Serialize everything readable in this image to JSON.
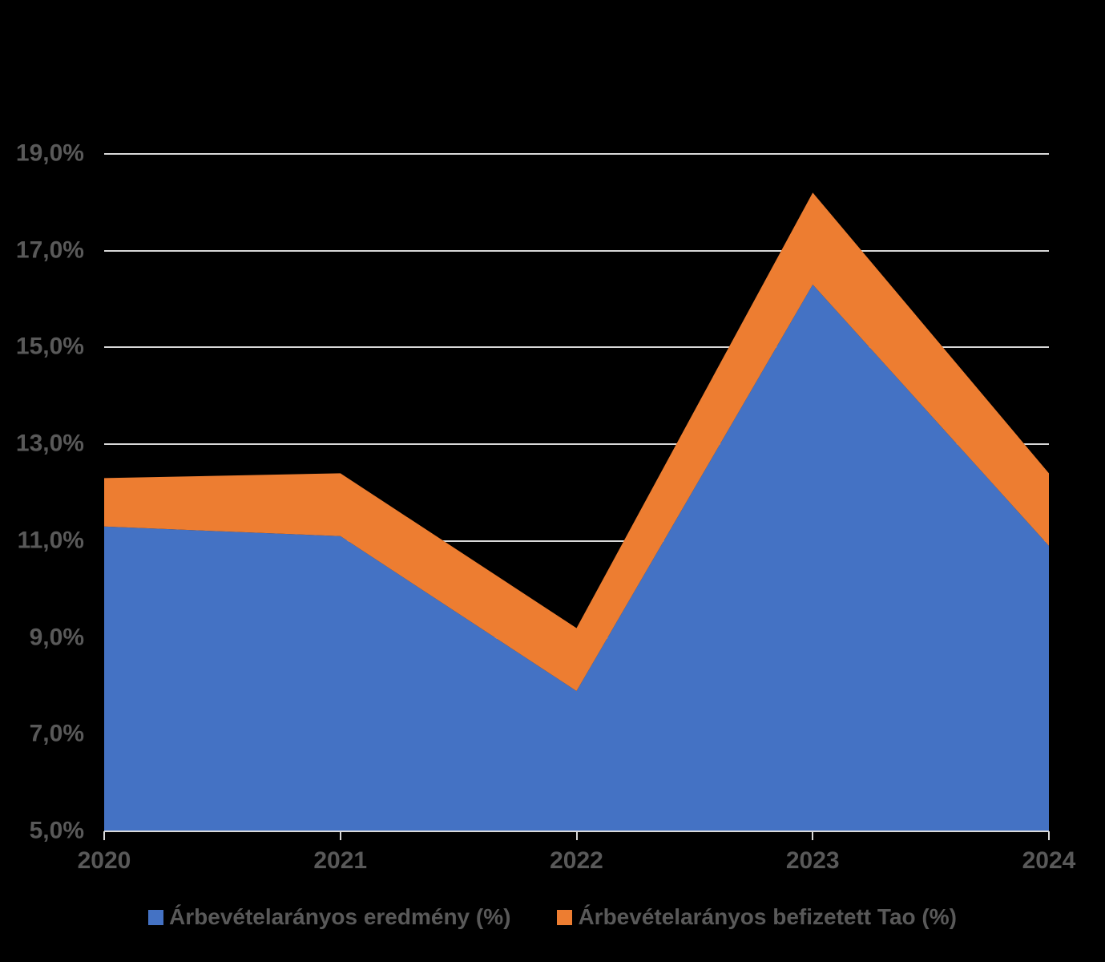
{
  "chart_data": {
    "type": "area",
    "stacked": true,
    "title": "",
    "xlabel": "",
    "ylabel": "",
    "categories": [
      "2020",
      "2021",
      "2022",
      "2023",
      "2024"
    ],
    "series": [
      {
        "name": "Árbevételarányos eredmény (%)",
        "color": "#4472C4",
        "values": [
          11.3,
          11.1,
          7.9,
          16.3,
          10.9
        ]
      },
      {
        "name": "Árbevételarányos befizetett Tao (%)",
        "color": "#ED7D31",
        "values": [
          1.0,
          1.3,
          1.3,
          1.9,
          1.5
        ]
      }
    ],
    "stacked_totals": [
      12.3,
      12.4,
      9.2,
      18.2,
      12.4
    ],
    "ylim": [
      5,
      19
    ],
    "y_ticks": [
      {
        "value": 5,
        "label": "5,0%"
      },
      {
        "value": 7,
        "label": "7,0%"
      },
      {
        "value": 9,
        "label": "9,0%"
      },
      {
        "value": 11,
        "label": "11,0%"
      },
      {
        "value": 13,
        "label": "13,0%"
      },
      {
        "value": 15,
        "label": "15,0%"
      },
      {
        "value": 17,
        "label": "17,0%"
      },
      {
        "value": 19,
        "label": "19,0%"
      }
    ],
    "grid": true,
    "legend_position": "bottom"
  },
  "theme": {
    "background": "#000000",
    "gridline_color": "#D9D9D9",
    "axis_line_color": "#D9D9D9",
    "tick_label_color": "#595959"
  }
}
